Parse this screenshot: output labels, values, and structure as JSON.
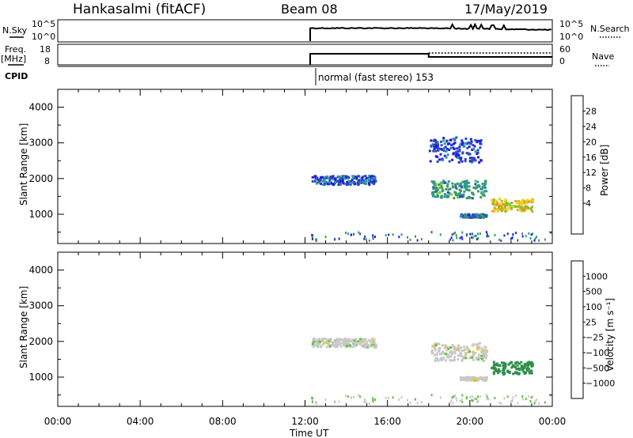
{
  "header": {
    "site": "Hankasalmi (fitACF)",
    "beam": "Beam 08",
    "date": "17/May/2019"
  },
  "strips": {
    "nsky_label": "N.Sky",
    "nsky_ticks": [
      "10^5",
      "10^0"
    ],
    "nsearch_label": "N.Search",
    "nsearch_ticks": [
      "10^5",
      "10^0"
    ],
    "freq_label": "Freq.",
    "freq_unit": "[MHz]",
    "freq_ticks": [
      "18",
      "8"
    ],
    "nave_label": "Nave",
    "nave_ticks": [
      "60",
      "0"
    ],
    "cpid_label": "CPID",
    "cpid_text": "normal (fast stereo) 153"
  },
  "x_axis": {
    "title": "Time UT",
    "ticks": [
      "00:00",
      "04:00",
      "08:00",
      "12:00",
      "16:00",
      "20:00",
      "00:00"
    ]
  },
  "colors": {
    "power": [
      "#1f1fe6",
      "#2e4fb8",
      "#2f9a9a",
      "#3a9a55",
      "#79c23a",
      "#e8d21e",
      "#f29a17",
      "#e8591a",
      "#e01d1d"
    ],
    "velocity": [
      "#e01010",
      "#ee5a12",
      "#f09b12",
      "#f2c820",
      "#c8c8c8",
      "#5cc43a",
      "#2f8f4a",
      "#2e52b0",
      "#1e3dc0"
    ]
  },
  "chart_data": [
    {
      "type": "heatmap",
      "title": "Power",
      "ylabel": "Slant Range [km]",
      "xlabel": "Time UT",
      "xlim": [
        0,
        24
      ],
      "ylim": [
        180,
        4500
      ],
      "yticks": [
        "4000",
        "3000",
        "2000",
        "1000"
      ],
      "colorbar": {
        "label": "Power [dB]",
        "ticks": [
          "28",
          "24",
          "20",
          "16",
          "12",
          "8",
          "4"
        ],
        "range": [
          0,
          32
        ]
      },
      "echo_regions": [
        {
          "t_start": 12.3,
          "t_end": 15.4,
          "range_center_km": 1950,
          "range_width_km": 250,
          "value": 6
        },
        {
          "t_start": 18.1,
          "t_end": 20.8,
          "range_center_km": 1700,
          "range_width_km": 500,
          "value": 12
        },
        {
          "t_start": 21.0,
          "t_end": 23.0,
          "range_center_km": 1250,
          "range_width_km": 350,
          "value": 22
        },
        {
          "t_start": 19.5,
          "t_end": 20.8,
          "range_center_km": 950,
          "range_width_km": 100,
          "value": 8
        },
        {
          "t_start": 18.0,
          "t_end": 20.5,
          "range_center_km": 2800,
          "range_width_km": 700,
          "value": 4
        }
      ]
    },
    {
      "type": "heatmap",
      "title": "Velocity",
      "ylabel": "Slant Range [km]",
      "xlabel": "Time UT",
      "xlim": [
        0,
        24
      ],
      "ylim": [
        180,
        4500
      ],
      "yticks": [
        "4000",
        "3000",
        "2000",
        "1000"
      ],
      "colorbar": {
        "label": "Velocity [m s⁻¹]",
        "ticks": [
          "1000",
          "500",
          "100",
          "25",
          "−25",
          "−100",
          "−500",
          "−1000"
        ]
      },
      "echo_regions": [
        {
          "t_start": 12.3,
          "t_end": 15.4,
          "range_center_km": 1950,
          "range_width_km": 250,
          "value": 0
        },
        {
          "t_start": 18.1,
          "t_end": 20.8,
          "range_center_km": 1700,
          "range_width_km": 500,
          "value": 0
        },
        {
          "t_start": 21.0,
          "t_end": 23.0,
          "range_center_km": 1250,
          "range_width_km": 350,
          "value": 150
        },
        {
          "t_start": 19.5,
          "t_end": 20.8,
          "range_center_km": 950,
          "range_width_km": 100,
          "value": 0
        }
      ]
    }
  ]
}
